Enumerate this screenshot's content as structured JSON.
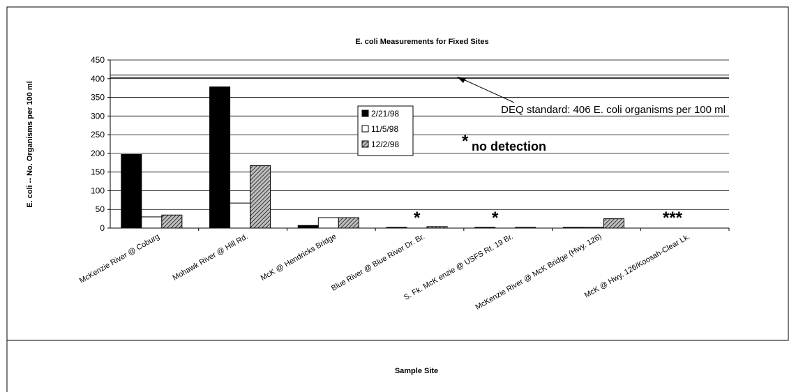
{
  "chart_data": {
    "type": "bar",
    "title": "E. coli Measurements for Fixed Sites",
    "x_label": "Sample Site",
    "y_label": "E. coli -- No. Organisms per 100 ml",
    "categories": [
      "McKenzie River @ Coburg",
      "Mohawk River @ Hill Rd.",
      "McK @ Hendricks Bridge",
      "Blue River @ Blue River Dr. Br.",
      "S. Fk. McK enzie @ USFS Rt. 19 Br.",
      "McKenzie River @ McK Bridge (Hwy. 126)",
      "McK @ Hwy. 126/Koosah-Clear Lk."
    ],
    "series": [
      {
        "name": "2/21/98",
        "color": "#000000",
        "values": [
          197,
          378,
          7,
          2,
          2,
          2,
          null
        ]
      },
      {
        "name": "11/5/98",
        "color": "#ffffff",
        "values": [
          30,
          67,
          28,
          null,
          null,
          2,
          null
        ]
      },
      {
        "name": "12/2/98",
        "color": "#808080",
        "pattern": "hatch",
        "values": [
          35,
          167,
          28,
          4,
          2,
          25,
          null
        ]
      }
    ],
    "ylim": [
      0,
      450
    ],
    "yticks": [
      0,
      50,
      100,
      150,
      200,
      250,
      300,
      350,
      400,
      450
    ],
    "grid": true,
    "reference_line": 406,
    "reference_label": "DEQ standard: 406 E. coli organisms per 100 ml",
    "annotations": [
      "*",
      "no detection",
      "*",
      "*",
      "***"
    ]
  }
}
